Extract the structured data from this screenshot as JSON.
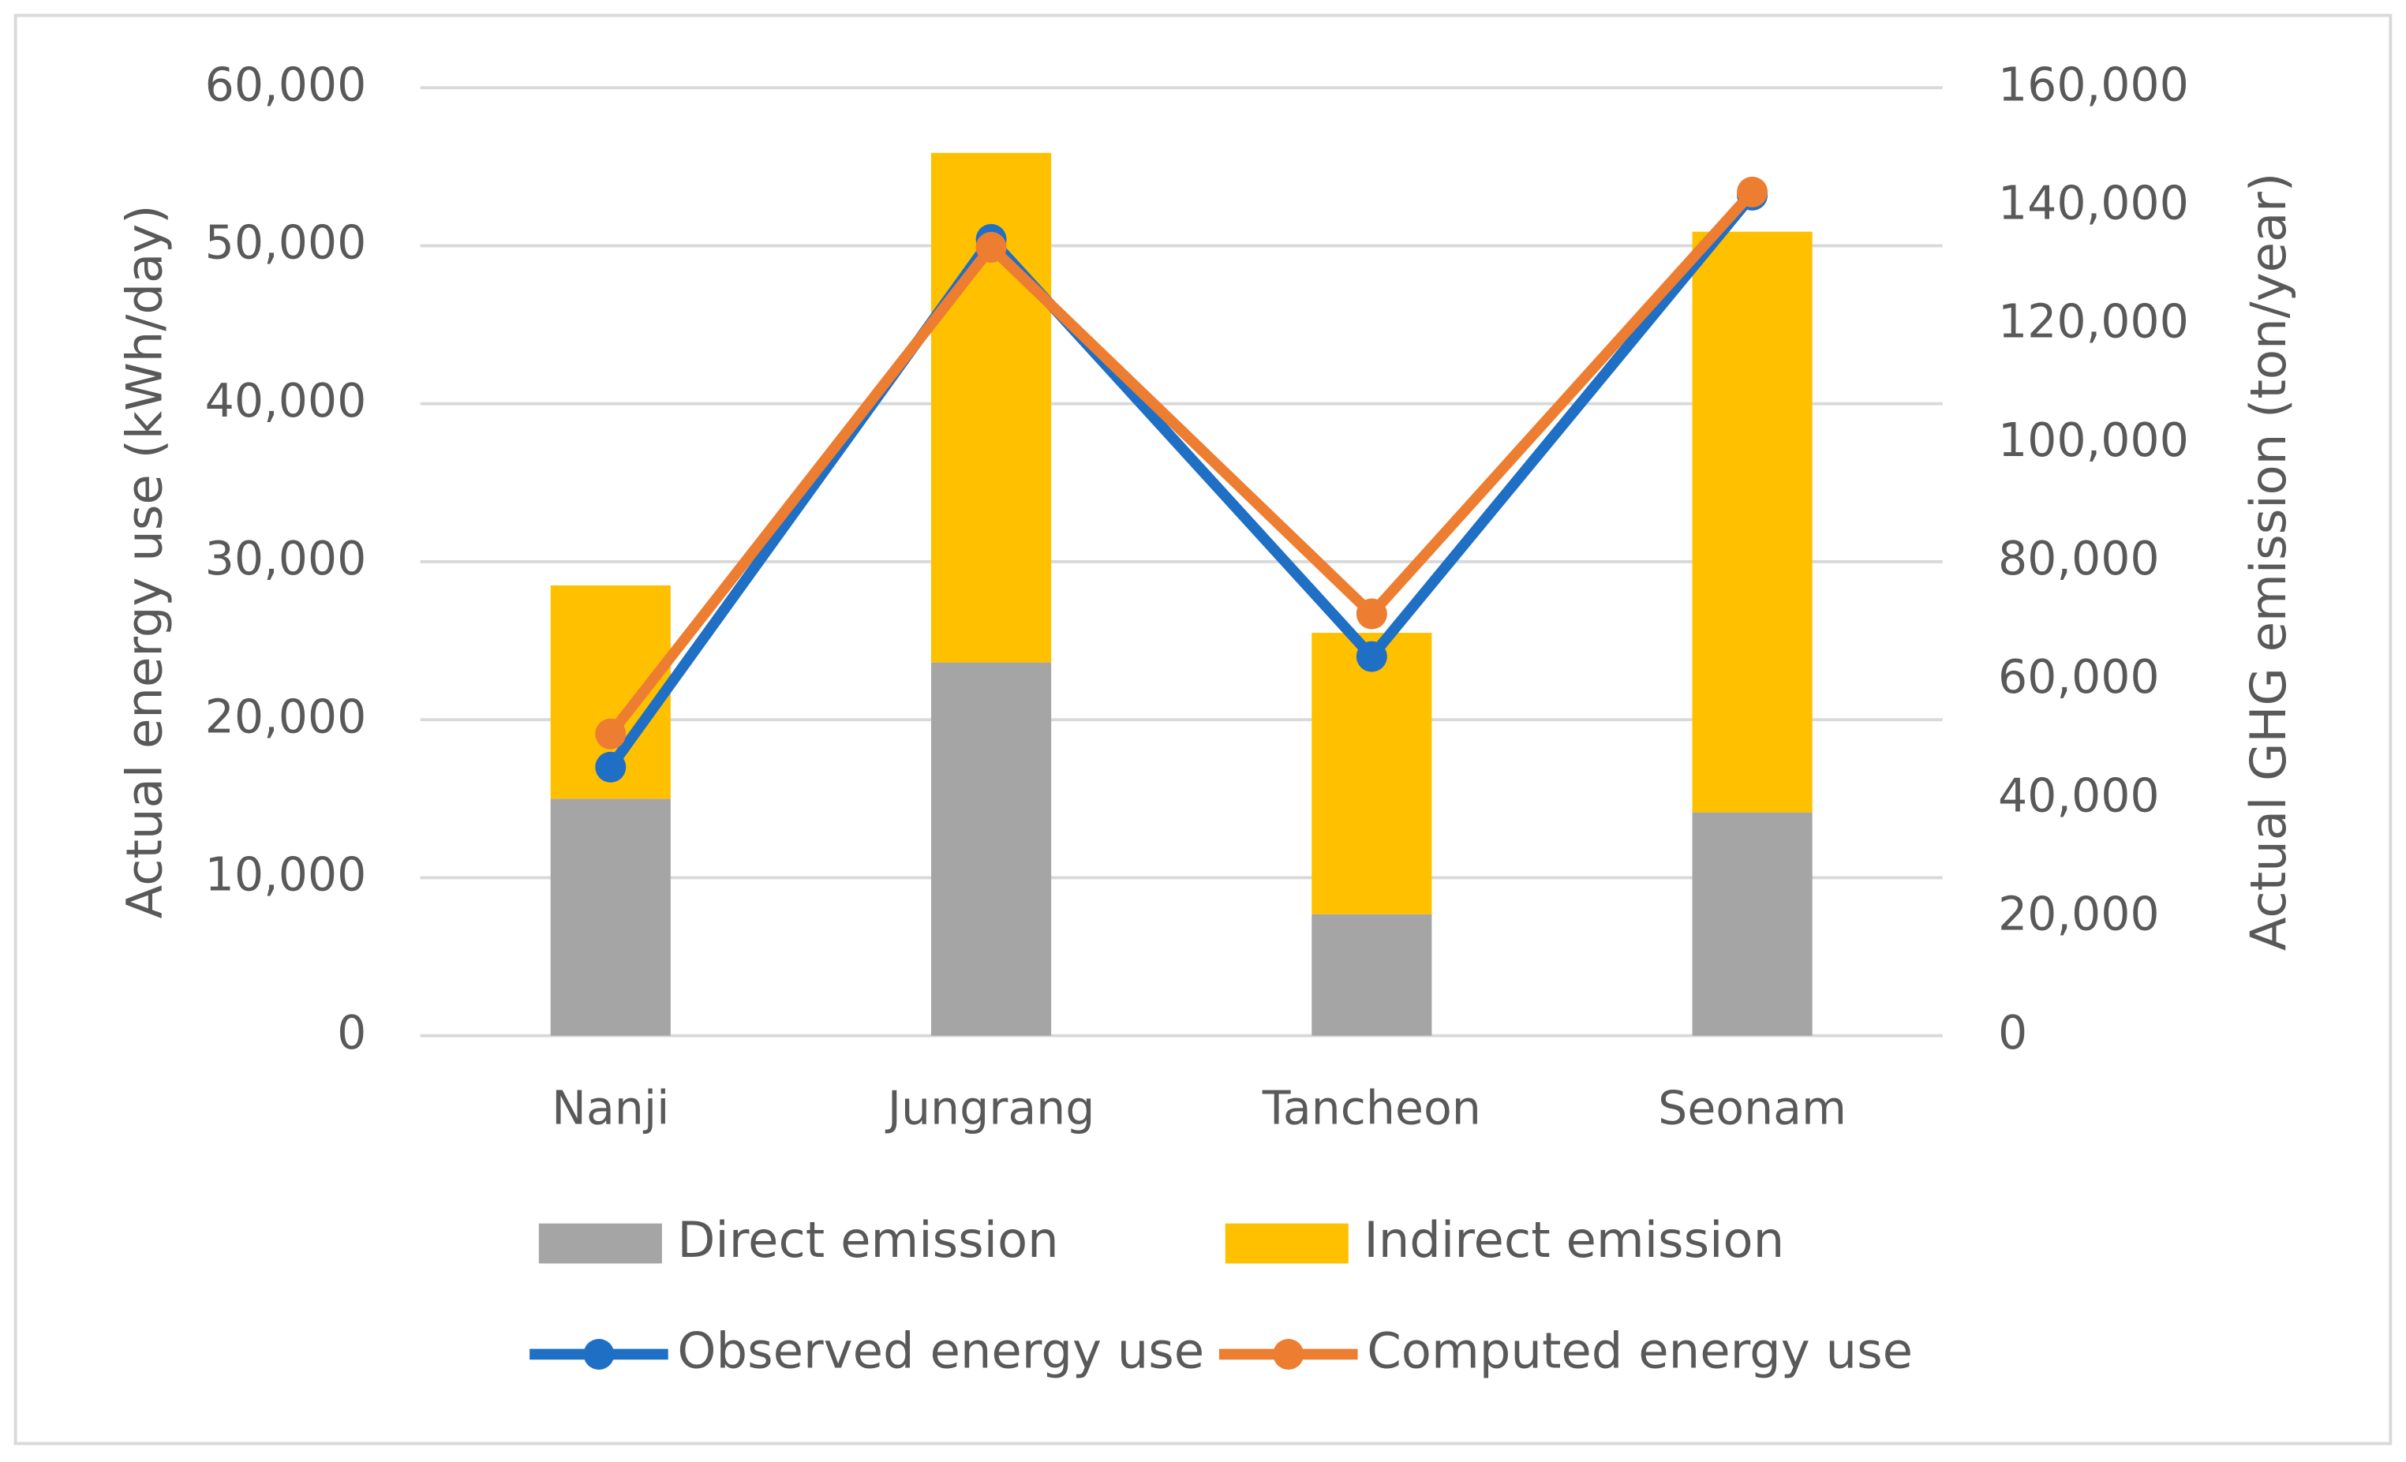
{
  "chart_data": {
    "type": "combo",
    "y_label": "Actual energy use (kWh/day)",
    "y2_label": "Actual GHG emission (ton/year)",
    "categories": [
      "Nanji",
      "Jungrang",
      "Tancheon",
      "Seonam"
    ],
    "series": [
      {
        "name": "Direct emission",
        "type": "bar",
        "axis": "y2",
        "color": "#a5a5a5",
        "values": [
          40000,
          63000,
          20500,
          37700
        ]
      },
      {
        "name": "Indirect emission",
        "type": "bar",
        "axis": "y2",
        "color": "#ffc000",
        "values": [
          36000,
          86000,
          47500,
          98000
        ]
      },
      {
        "name": "Observed energy use",
        "type": "line",
        "color": "#1f6fc5",
        "values": [
          17000,
          50400,
          24000,
          53200
        ]
      },
      {
        "name": "Computed energy use",
        "type": "line",
        "color": "#ed7d31",
        "values": [
          19100,
          49900,
          26700,
          53400
        ]
      }
    ],
    "stacked": true,
    "ylim": [
      0,
      60000
    ],
    "yticks": [
      0,
      {
        "value": 10000,
        "label": "10,000"
      },
      {
        "value": 20000,
        "label": "20,000"
      },
      {
        "value": 30000,
        "label": "30,000"
      },
      {
        "value": 40000,
        "label": "40,000"
      },
      {
        "value": 50000,
        "label": "50,000"
      },
      {
        "value": 60000,
        "label": "60,000"
      }
    ],
    "y2lim": [
      0,
      160000
    ],
    "y2ticks": [
      0,
      {
        "value": 20000,
        "label": "20,000"
      },
      {
        "value": 40000,
        "label": "40,000"
      },
      {
        "value": 60000,
        "label": "60,000"
      },
      {
        "value": 80000,
        "label": "80,000"
      },
      {
        "value": 100000,
        "label": "100,000"
      },
      {
        "value": 120000,
        "label": "120,000"
      },
      {
        "value": 140000,
        "label": "140,000"
      },
      {
        "value": 160000,
        "label": "160,000"
      }
    ],
    "grid": true,
    "legend": "bottom"
  }
}
